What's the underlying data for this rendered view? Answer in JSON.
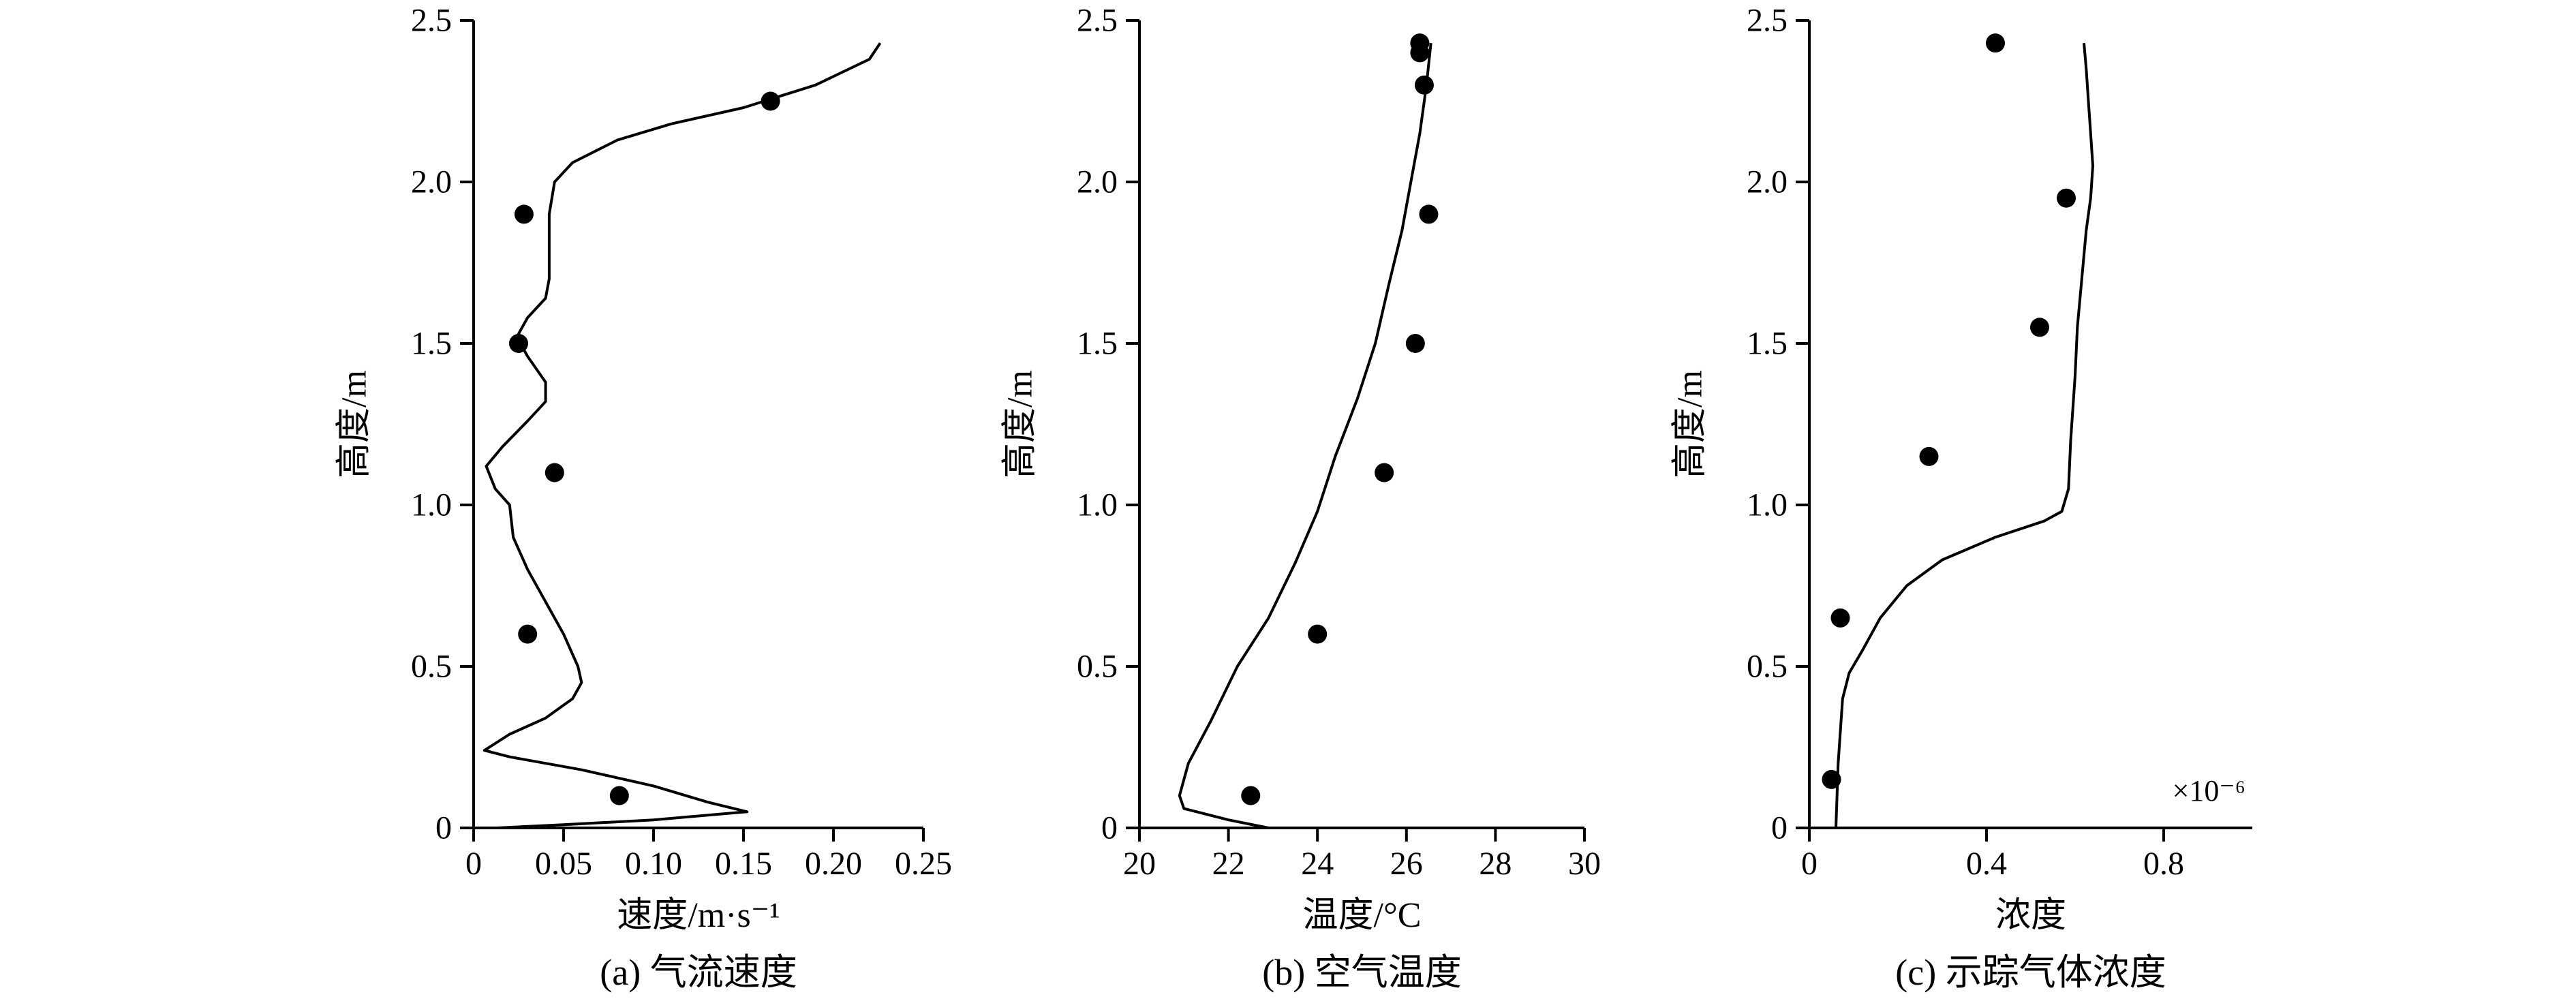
{
  "chart_data": [
    {
      "type": "line",
      "caption": "(a) 气流速度",
      "xlabel": "速度/m·s⁻¹",
      "ylabel": "高度/m",
      "xlim": [
        0,
        0.25
      ],
      "ylim": [
        0,
        2.5
      ],
      "xticks": [
        "0",
        "0.05",
        "0.10",
        "0.15",
        "0.20",
        "0.25"
      ],
      "yticks": [
        "0",
        "0.5",
        "1.0",
        "1.5",
        "2.0",
        "2.5"
      ],
      "grid": false,
      "series": [
        {
          "kind": "line",
          "points": [
            [
              0.013,
              0.0
            ],
            [
              0.05,
              0.01
            ],
            [
              0.1,
              0.025
            ],
            [
              0.152,
              0.05
            ],
            [
              0.13,
              0.08
            ],
            [
              0.1,
              0.13
            ],
            [
              0.06,
              0.18
            ],
            [
              0.02,
              0.22
            ],
            [
              0.006,
              0.24
            ],
            [
              0.02,
              0.29
            ],
            [
              0.04,
              0.34
            ],
            [
              0.055,
              0.4
            ],
            [
              0.06,
              0.45
            ],
            [
              0.058,
              0.5
            ],
            [
              0.05,
              0.6
            ],
            [
              0.04,
              0.7
            ],
            [
              0.03,
              0.8
            ],
            [
              0.022,
              0.9
            ],
            [
              0.02,
              1.0
            ],
            [
              0.012,
              1.05
            ],
            [
              0.007,
              1.12
            ],
            [
              0.016,
              1.18
            ],
            [
              0.03,
              1.26
            ],
            [
              0.04,
              1.32
            ],
            [
              0.04,
              1.38
            ],
            [
              0.03,
              1.46
            ],
            [
              0.024,
              1.52
            ],
            [
              0.03,
              1.58
            ],
            [
              0.04,
              1.64
            ],
            [
              0.042,
              1.7
            ],
            [
              0.042,
              1.8
            ],
            [
              0.042,
              1.9
            ],
            [
              0.045,
              2.0
            ],
            [
              0.055,
              2.06
            ],
            [
              0.08,
              2.13
            ],
            [
              0.11,
              2.18
            ],
            [
              0.15,
              2.23
            ],
            [
              0.19,
              2.3
            ],
            [
              0.22,
              2.38
            ],
            [
              0.226,
              2.43
            ]
          ]
        },
        {
          "kind": "scatter",
          "points": [
            [
              0.081,
              0.1
            ],
            [
              0.03,
              0.6
            ],
            [
              0.045,
              1.1
            ],
            [
              0.025,
              1.5
            ],
            [
              0.028,
              1.9
            ],
            [
              0.165,
              2.25
            ]
          ]
        }
      ]
    },
    {
      "type": "line",
      "caption": "(b) 空气温度",
      "xlabel": "温度/°C",
      "ylabel": "高度/m",
      "xlim": [
        20,
        30
      ],
      "ylim": [
        0,
        2.5
      ],
      "xticks": [
        "20",
        "22",
        "24",
        "26",
        "28",
        "30"
      ],
      "yticks": [
        "0",
        "0.5",
        "1.0",
        "1.5",
        "2.0",
        "2.5"
      ],
      "grid": false,
      "series": [
        {
          "kind": "line",
          "points": [
            [
              22.9,
              0.0
            ],
            [
              22.0,
              0.025
            ],
            [
              21.0,
              0.06
            ],
            [
              20.9,
              0.1
            ],
            [
              21.1,
              0.2
            ],
            [
              21.6,
              0.33
            ],
            [
              22.2,
              0.5
            ],
            [
              22.9,
              0.65
            ],
            [
              23.5,
              0.82
            ],
            [
              24.0,
              0.98
            ],
            [
              24.4,
              1.15
            ],
            [
              24.9,
              1.33
            ],
            [
              25.3,
              1.5
            ],
            [
              25.6,
              1.68
            ],
            [
              25.9,
              1.85
            ],
            [
              26.1,
              2.0
            ],
            [
              26.3,
              2.15
            ],
            [
              26.45,
              2.3
            ],
            [
              26.55,
              2.43
            ]
          ]
        },
        {
          "kind": "scatter",
          "points": [
            [
              22.5,
              0.1
            ],
            [
              24.0,
              0.6
            ],
            [
              25.5,
              1.1
            ],
            [
              26.2,
              1.5
            ],
            [
              26.5,
              1.9
            ],
            [
              26.4,
              2.3
            ],
            [
              26.3,
              2.4
            ],
            [
              26.3,
              2.43
            ]
          ]
        }
      ]
    },
    {
      "type": "line",
      "caption": "(c) 示踪气体浓度",
      "xlabel": "浓度",
      "ylabel": "高度/m",
      "xlim": [
        0,
        1.0
      ],
      "ylim": [
        0,
        2.5
      ],
      "xticks": [
        "0",
        "0.4",
        "0.8"
      ],
      "yticks": [
        "0",
        "0.5",
        "1.0",
        "1.5",
        "2.0",
        "2.5"
      ],
      "scale_label": "×10⁻⁶",
      "grid": false,
      "series": [
        {
          "kind": "line",
          "points": [
            [
              0.06,
              0.0
            ],
            [
              0.065,
              0.2
            ],
            [
              0.075,
              0.4
            ],
            [
              0.09,
              0.48
            ],
            [
              0.12,
              0.55
            ],
            [
              0.16,
              0.65
            ],
            [
              0.22,
              0.75
            ],
            [
              0.3,
              0.83
            ],
            [
              0.42,
              0.9
            ],
            [
              0.53,
              0.95
            ],
            [
              0.57,
              0.98
            ],
            [
              0.585,
              1.05
            ],
            [
              0.59,
              1.2
            ],
            [
              0.6,
              1.4
            ],
            [
              0.605,
              1.55
            ],
            [
              0.615,
              1.7
            ],
            [
              0.625,
              1.85
            ],
            [
              0.635,
              1.95
            ],
            [
              0.64,
              2.05
            ],
            [
              0.635,
              2.15
            ],
            [
              0.63,
              2.25
            ],
            [
              0.625,
              2.35
            ],
            [
              0.62,
              2.43
            ]
          ]
        },
        {
          "kind": "scatter",
          "points": [
            [
              0.05,
              0.15
            ],
            [
              0.07,
              0.65
            ],
            [
              0.27,
              1.15
            ],
            [
              0.52,
              1.55
            ],
            [
              0.58,
              1.95
            ],
            [
              0.42,
              2.43
            ]
          ]
        }
      ]
    }
  ]
}
